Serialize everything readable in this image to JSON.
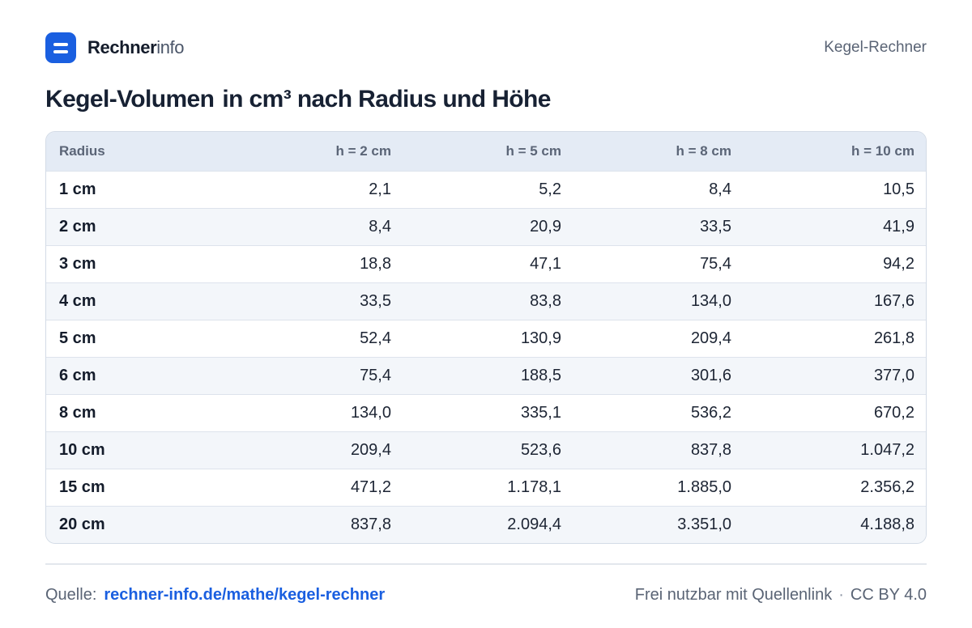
{
  "brand": {
    "name_bold": "Rechner",
    "name_light": "info"
  },
  "header": {
    "page_label": "Kegel-Rechner"
  },
  "title": {
    "part1": "Kegel-Volumen",
    "part2": "in cm³ nach Radius und Höhe"
  },
  "table": {
    "columns": [
      "Radius",
      "h = 2 cm",
      "h = 5 cm",
      "h = 8 cm",
      "h = 10 cm"
    ],
    "rows": [
      [
        "1 cm",
        "2,1",
        "5,2",
        "8,4",
        "10,5"
      ],
      [
        "2 cm",
        "8,4",
        "20,9",
        "33,5",
        "41,9"
      ],
      [
        "3 cm",
        "18,8",
        "47,1",
        "75,4",
        "94,2"
      ],
      [
        "4 cm",
        "33,5",
        "83,8",
        "134,0",
        "167,6"
      ],
      [
        "5 cm",
        "52,4",
        "130,9",
        "209,4",
        "261,8"
      ],
      [
        "6 cm",
        "75,4",
        "188,5",
        "301,6",
        "377,0"
      ],
      [
        "8 cm",
        "134,0",
        "335,1",
        "536,2",
        "670,2"
      ],
      [
        "10 cm",
        "209,4",
        "523,6",
        "837,8",
        "1.047,2"
      ],
      [
        "15 cm",
        "471,2",
        "1.178,1",
        "1.885,0",
        "2.356,2"
      ],
      [
        "20 cm",
        "837,8",
        "2.094,4",
        "3.351,0",
        "4.188,8"
      ]
    ]
  },
  "footer": {
    "source_label": "Quelle:",
    "source_link": "rechner-info.de/mathe/kegel-rechner",
    "license_text": "Frei nutzbar mit Quellenlink",
    "separator": "·",
    "license_name": "CC BY 4.0"
  },
  "colors": {
    "accent": "#1a5fe0",
    "header_row": "#e4ebf5",
    "stripe": "#f3f6fa"
  }
}
